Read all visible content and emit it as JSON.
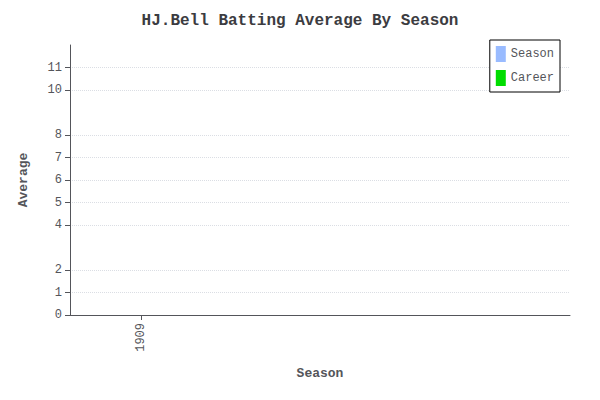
{
  "chart_data": {
    "type": "bar",
    "title": "HJ.Bell Batting Average By Season",
    "xlabel": "Season",
    "ylabel": "Average",
    "xlim": [
      1908.5,
      1912
    ],
    "xticks": [
      1909
    ],
    "ylim": [
      0,
      12
    ],
    "yticks": [
      0,
      1,
      2,
      4,
      5,
      6,
      7,
      8,
      10,
      11
    ],
    "grid": true,
    "legend": "upper right",
    "series": [
      {
        "name": "Season",
        "color": "#99bbff",
        "values": []
      },
      {
        "name": "Career",
        "color": "#00dd00",
        "values": []
      }
    ]
  }
}
